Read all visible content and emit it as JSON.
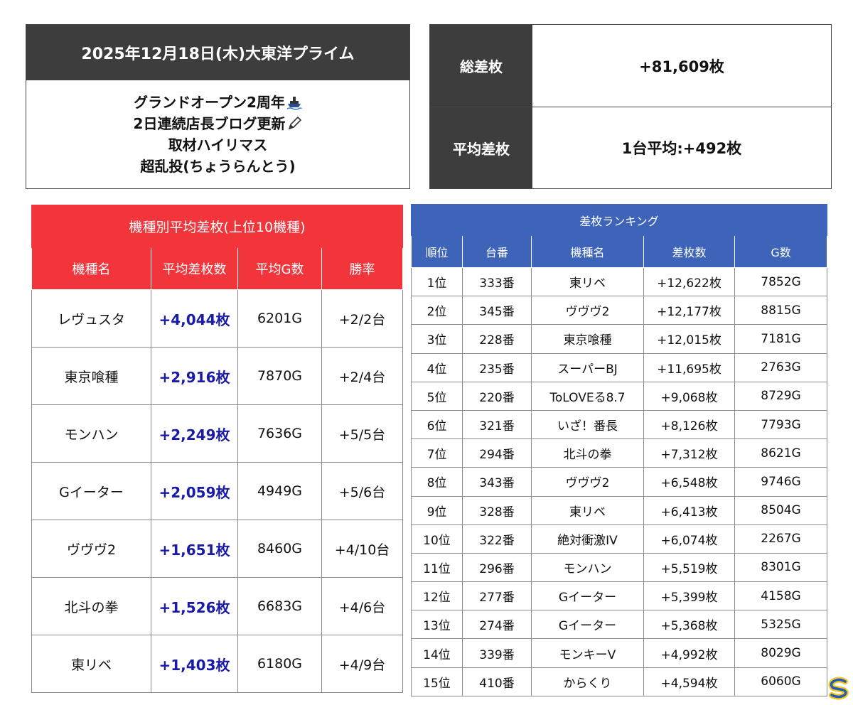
{
  "title": {
    "heading": "2025年12月18日(木)大東洋プライム",
    "lines": [
      "グランドオープン2周年",
      "2日連続店長ブログ更新",
      "取材ハイリマス",
      "超乱投(ちょうらんとう)"
    ],
    "icons": [
      "ship-icon",
      "pencil-icon"
    ]
  },
  "summary": {
    "total_label": "総差枚",
    "total_value": "+81,609枚",
    "avg_label": "平均差枚",
    "avg_value": "1台平均:+492枚"
  },
  "machine_table": {
    "title": "機種別平均差枚(上位10機種)",
    "headers": [
      "機種名",
      "平均差枚数",
      "平均G数",
      "勝率"
    ],
    "rows": [
      [
        "レヴュスタ",
        "+4,044枚",
        "6201G",
        "+2/2台"
      ],
      [
        "東京喰種",
        "+2,916枚",
        "7870G",
        "+2/4台"
      ],
      [
        "モンハン",
        "+2,249枚",
        "7636G",
        "+5/5台"
      ],
      [
        "Gイーター",
        "+2,059枚",
        "4949G",
        "+5/6台"
      ],
      [
        "ヴヴヴ2",
        "+1,651枚",
        "8460G",
        "+4/10台"
      ],
      [
        "北斗の拳",
        "+1,526枚",
        "6683G",
        "+4/6台"
      ],
      [
        "東リベ",
        "+1,403枚",
        "6180G",
        "+4/9台"
      ]
    ],
    "diff_color": "#1a1aa8",
    "header_color": "#f2353b"
  },
  "ranking_table": {
    "title": "差枚ランキング",
    "headers": [
      "順位",
      "台番",
      "機種名",
      "差枚数",
      "G数"
    ],
    "rows": [
      [
        "1位",
        "333番",
        "東リベ",
        "+12,622枚",
        "7852G"
      ],
      [
        "2位",
        "345番",
        "ヴヴヴ2",
        "+12,177枚",
        "8815G"
      ],
      [
        "3位",
        "228番",
        "東京喰種",
        "+12,015枚",
        "7181G"
      ],
      [
        "4位",
        "235番",
        "スーパーBJ",
        "+11,695枚",
        "2763G"
      ],
      [
        "5位",
        "220番",
        "ToLOVEる8.7",
        "+9,068枚",
        "8729G"
      ],
      [
        "6位",
        "321番",
        "いざ！番長",
        "+8,126枚",
        "7793G"
      ],
      [
        "7位",
        "294番",
        "北斗の拳",
        "+7,312枚",
        "8621G"
      ],
      [
        "8位",
        "343番",
        "ヴヴヴ2",
        "+6,548枚",
        "9746G"
      ],
      [
        "9位",
        "328番",
        "東リベ",
        "+6,413枚",
        "8504G"
      ],
      [
        "10位",
        "322番",
        "絶対衝激IV",
        "+6,074枚",
        "2267G"
      ],
      [
        "11位",
        "296番",
        "モンハン",
        "+5,519枚",
        "8301G"
      ],
      [
        "12位",
        "277番",
        "Gイーター",
        "+5,399枚",
        "4158G"
      ],
      [
        "13位",
        "274番",
        "Gイーター",
        "+5,368枚",
        "5325G"
      ],
      [
        "14位",
        "339番",
        "モンキーV",
        "+4,992枚",
        "8029G"
      ],
      [
        "15位",
        "410番",
        "からくり",
        "+4,594枚",
        "6060G"
      ]
    ],
    "header_color": "#3d64b8"
  },
  "logo": {
    "icon": "s-logo-icon"
  }
}
